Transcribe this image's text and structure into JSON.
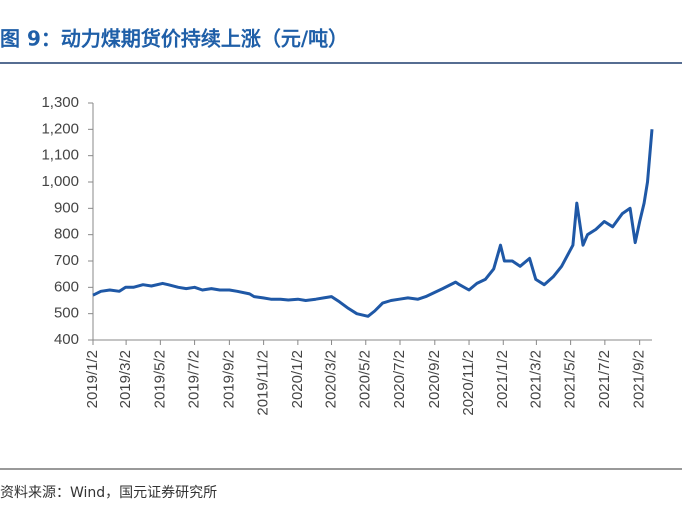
{
  "chart_data": {
    "type": "line",
    "title": "图 9：动力煤期货价持续上涨（元/吨）",
    "source": "资料来源：Wind，国元证券研究所",
    "x": [
      "2019/1/2",
      "2019/1/16",
      "2019/2/1",
      "2019/2/18",
      "2019/3/1",
      "2019/3/15",
      "2019/4/1",
      "2019/4/16",
      "2019/5/6",
      "2019/5/16",
      "2019/6/3",
      "2019/6/17",
      "2019/7/2",
      "2019/7/16",
      "2019/8/1",
      "2019/8/16",
      "2019/9/2",
      "2019/9/16",
      "2019/10/8",
      "2019/10/16",
      "2019/11/1",
      "2019/11/15",
      "2019/12/2",
      "2019/12/16",
      "2020/1/2",
      "2020/1/16",
      "2020/2/3",
      "2020/2/17",
      "2020/3/2",
      "2020/3/16",
      "2020/4/1",
      "2020/4/16",
      "2020/5/6",
      "2020/5/18",
      "2020/6/1",
      "2020/6/16",
      "2020/7/1",
      "2020/7/16",
      "2020/8/3",
      "2020/8/17",
      "2020/9/1",
      "2020/9/16",
      "2020/10/9",
      "2020/10/16",
      "2020/11/2",
      "2020/11/16",
      "2020/12/1",
      "2020/12/16",
      "2020/12/28",
      "2021/1/4",
      "2021/1/18",
      "2021/2/1",
      "2021/2/18",
      "2021/3/1",
      "2021/3/16",
      "2021/4/1",
      "2021/4/16",
      "2021/5/6",
      "2021/5/13",
      "2021/5/24",
      "2021/6/1",
      "2021/6/16",
      "2021/7/1",
      "2021/7/16",
      "2021/8/2",
      "2021/8/16",
      "2021/8/25",
      "2021/9/2",
      "2021/9/10",
      "2021/9/16",
      "2021/9/24"
    ],
    "series": [
      {
        "name": "动力煤期货价",
        "color": "#1f58a6",
        "values": [
          570,
          585,
          590,
          585,
          600,
          600,
          610,
          605,
          615,
          610,
          600,
          595,
          600,
          590,
          595,
          590,
          590,
          585,
          575,
          565,
          560,
          555,
          555,
          552,
          555,
          550,
          555,
          560,
          565,
          545,
          520,
          500,
          490,
          510,
          540,
          550,
          555,
          560,
          555,
          565,
          580,
          595,
          620,
          610,
          590,
          615,
          630,
          670,
          760,
          700,
          700,
          680,
          710,
          630,
          610,
          640,
          680,
          760,
          920,
          760,
          800,
          820,
          850,
          830,
          880,
          900,
          770,
          850,
          920,
          1000,
          1200
        ]
      }
    ],
    "xlim": [
      "2019/1/2",
      "2021/9/24"
    ],
    "xticks": [
      "2019/1/2",
      "2019/3/2",
      "2019/5/2",
      "2019/7/2",
      "2019/9/2",
      "2019/11/2",
      "2020/1/2",
      "2020/3/2",
      "2020/5/2",
      "2020/7/2",
      "2020/9/2",
      "2020/11/2",
      "2021/1/2",
      "2021/3/2",
      "2021/5/2",
      "2021/7/2",
      "2021/9/2"
    ],
    "ylim": [
      400,
      1300
    ],
    "yticks": [
      400,
      500,
      600,
      700,
      800,
      900,
      {
        "value": 1000,
        "label": "1,000"
      },
      {
        "value": 1100,
        "label": "1,100"
      },
      {
        "value": 1200,
        "label": "1,200"
      },
      {
        "value": 1300,
        "label": "1,300"
      }
    ],
    "grid": false
  }
}
